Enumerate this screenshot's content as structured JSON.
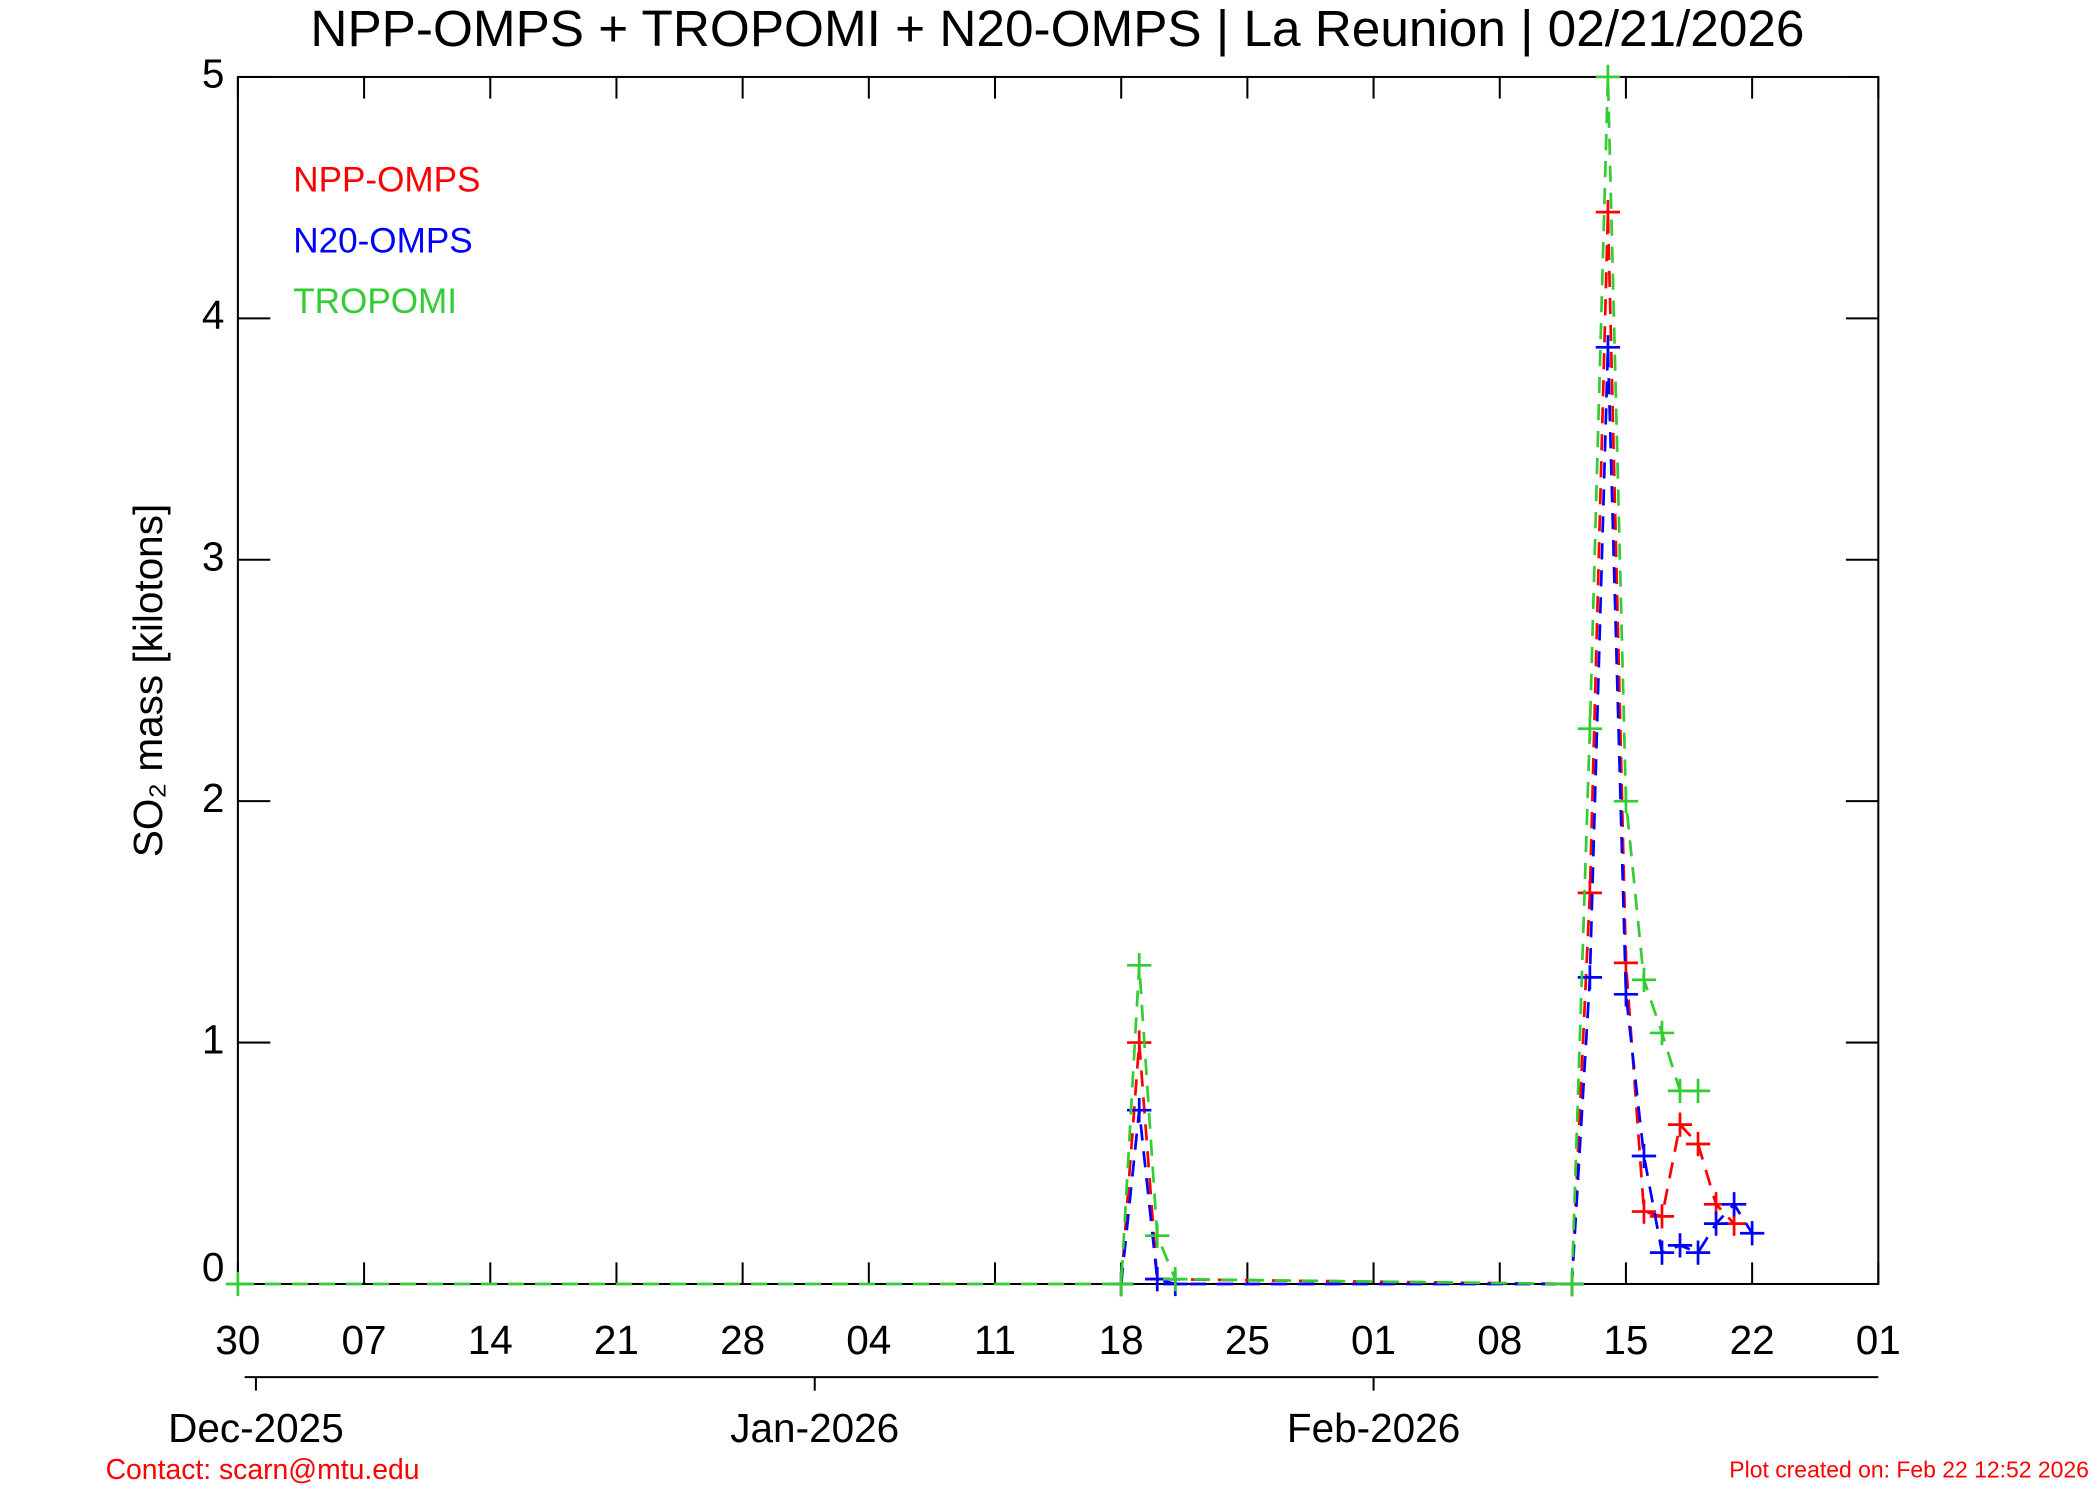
{
  "chart_data": {
    "type": "line",
    "title": "NPP-OMPS + TROPOMI + N20-OMPS | La Reunion | 02/21/2026",
    "y_label": "SO₂ mass [kilotons]",
    "footer_left": "Contact: scarn@mtu.edu",
    "footer_right": "Plot created on: Feb 22 12:52 2026",
    "legend": "upper left",
    "grid": false,
    "xlim": [
      "2025-11-30",
      "2026-03-01"
    ],
    "xticks": [
      {
        "value": "2025-11-30",
        "label": "30"
      },
      {
        "value": "2025-12-07",
        "label": "07"
      },
      {
        "value": "2025-12-14",
        "label": "14"
      },
      {
        "value": "2025-12-21",
        "label": "21"
      },
      {
        "value": "2025-12-28",
        "label": "28"
      },
      {
        "value": "2026-01-04",
        "label": "04"
      },
      {
        "value": "2026-01-11",
        "label": "11"
      },
      {
        "value": "2026-01-18",
        "label": "18"
      },
      {
        "value": "2026-01-25",
        "label": "25"
      },
      {
        "value": "2026-02-01",
        "label": "01"
      },
      {
        "value": "2026-02-08",
        "label": "08"
      },
      {
        "value": "2026-02-15",
        "label": "15"
      },
      {
        "value": "2026-02-22",
        "label": "22"
      },
      {
        "value": "2026-03-01",
        "label": "01"
      }
    ],
    "month_ticks": [
      {
        "value": "2025-12-01",
        "label": "Dec-2025"
      },
      {
        "value": "2026-01-01",
        "label": "Jan-2026"
      },
      {
        "value": "2026-02-01",
        "label": "Feb-2026"
      }
    ],
    "ylim": [
      0,
      5
    ],
    "yticks": [
      0,
      1,
      2,
      3,
      4,
      5
    ],
    "series": [
      {
        "name": "NPP-OMPS",
        "color": "#ff0000",
        "x": [
          "2026-01-18",
          "2026-01-19",
          "2026-01-20",
          "2026-02-12",
          "2026-02-13",
          "2026-02-14",
          "2026-02-15",
          "2026-02-16",
          "2026-02-17",
          "2026-02-18",
          "2026-02-19",
          "2026-02-20",
          "2026-02-21"
        ],
        "values": [
          0,
          1.0,
          0.02,
          0,
          1.62,
          4.44,
          1.33,
          0.3,
          0.28,
          0.66,
          0.58,
          0.33,
          0.25
        ]
      },
      {
        "name": "N20-OMPS",
        "color": "#0000ff",
        "x": [
          "2026-01-18",
          "2026-01-19",
          "2026-01-20",
          "2026-01-21",
          "2026-02-12",
          "2026-02-13",
          "2026-02-14",
          "2026-02-15",
          "2026-02-16",
          "2026-02-17",
          "2026-02-18",
          "2026-02-19",
          "2026-02-20",
          "2026-02-21",
          "2026-02-22"
        ],
        "values": [
          0,
          0.72,
          0.02,
          0,
          0,
          1.27,
          3.88,
          1.2,
          0.53,
          0.13,
          0.16,
          0.13,
          0.25,
          0.33,
          0.21
        ]
      },
      {
        "name": "TROPOMI",
        "color": "#33cc33",
        "x": [
          "2025-11-30",
          "2026-01-18",
          "2026-01-19",
          "2026-01-20",
          "2026-01-21",
          "2026-02-12",
          "2026-02-13",
          "2026-02-14",
          "2026-02-15",
          "2026-02-16",
          "2026-02-17",
          "2026-02-18",
          "2026-02-19"
        ],
        "values": [
          0,
          0,
          1.32,
          0.2,
          0.02,
          0,
          2.3,
          5.0,
          2.0,
          1.26,
          1.04,
          0.8,
          0.8
        ]
      }
    ]
  }
}
